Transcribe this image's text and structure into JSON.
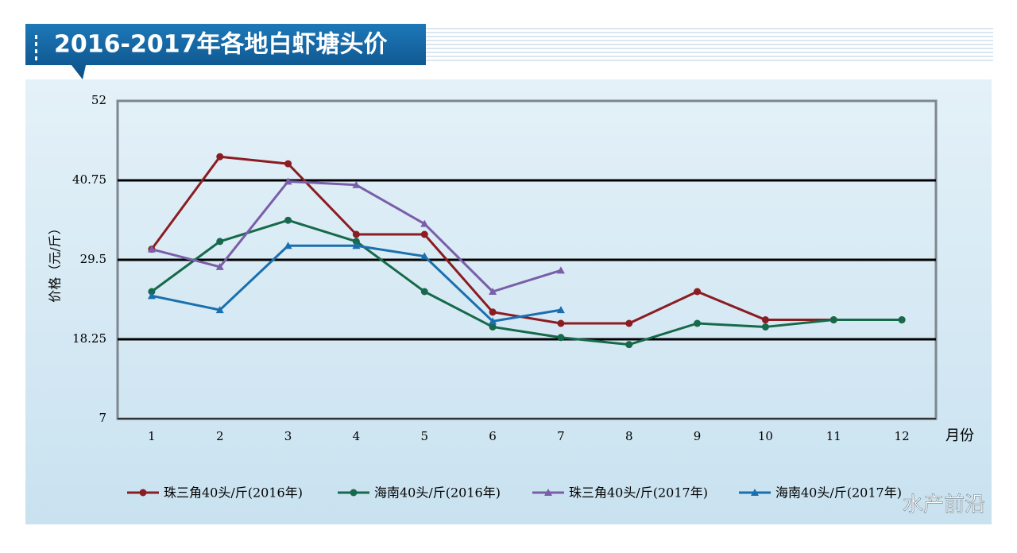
{
  "chart_data": {
    "type": "line",
    "title": "2016-2017年各地白虾塘头价",
    "x_label": "月份",
    "y_label": "价格（元/斤）",
    "categories": [
      "1",
      "2",
      "3",
      "4",
      "5",
      "6",
      "7",
      "8",
      "9",
      "10",
      "11",
      "12"
    ],
    "ylim": [
      7,
      52
    ],
    "yticks": [
      7,
      18.25,
      29.5,
      40.75,
      52
    ],
    "grid": true,
    "legend": "bottom",
    "series": [
      {
        "name": "珠三角40头/斤(2016年)",
        "color": "#8b1c22",
        "marker": "circle",
        "values": [
          31,
          44.1,
          43.1,
          33.1,
          33.1,
          22.1,
          20.5,
          20.5,
          25,
          21,
          21,
          21
        ]
      },
      {
        "name": "海南40头/斤(2016年)",
        "color": "#16694a",
        "marker": "circle",
        "values": [
          25,
          32.1,
          35.1,
          32.1,
          25,
          20,
          18.5,
          17.5,
          20.5,
          20,
          21,
          21
        ]
      },
      {
        "name": "珠三角40头/斤(2017年)",
        "color": "#7a5ea8",
        "marker": "triangle",
        "values": [
          31,
          28.5,
          40.6,
          40.1,
          34.6,
          25,
          28,
          null,
          null,
          null,
          null,
          null
        ]
      },
      {
        "name": "海南40头/斤(2017年)",
        "color": "#1a6fae",
        "marker": "triangle",
        "values": [
          24.4,
          22.4,
          31.5,
          31.5,
          30,
          20.8,
          22.4,
          null,
          null,
          null,
          null,
          null
        ]
      }
    ],
    "watermark": "水产前沿"
  }
}
